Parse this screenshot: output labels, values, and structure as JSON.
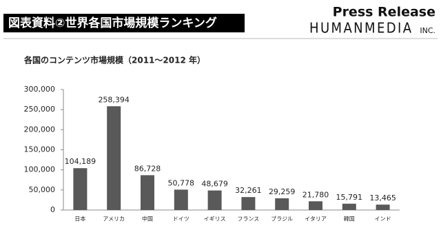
{
  "header": {
    "title": "図表資料②世界各国市場規模ランキング",
    "brand_top": "Press Release",
    "brand_main": "HUMANMEDIA",
    "brand_suffix": "INC."
  },
  "chart_data": {
    "type": "bar",
    "title": "各国のコンテンツ市場規模（2011～2012 年）",
    "categories": [
      "日本",
      "アメリカ",
      "中国",
      "ドイツ",
      "イギリス",
      "フランス",
      "ブラジル",
      "イタリア",
      "韓国",
      "インド"
    ],
    "values": [
      104189,
      258394,
      86728,
      50778,
      48679,
      32261,
      29259,
      21780,
      15791,
      13465
    ],
    "value_labels": [
      "104,189",
      "258,394",
      "86,728",
      "50,778",
      "48,679",
      "32,261",
      "29,259",
      "21,780",
      "15,791",
      "13,465"
    ],
    "color": "#595959",
    "ylim": [
      0,
      300000
    ],
    "yticks": [
      0,
      {
        "value": 50000,
        "label": "50,000"
      },
      {
        "value": 100000,
        "label": "100,000"
      },
      {
        "value": 150000,
        "label": "150,000"
      },
      {
        "value": 200000,
        "label": "200,000"
      },
      {
        "value": 250000,
        "label": "250,000"
      },
      {
        "value": 300000,
        "label": "300,000"
      }
    ],
    "grid": false
  }
}
